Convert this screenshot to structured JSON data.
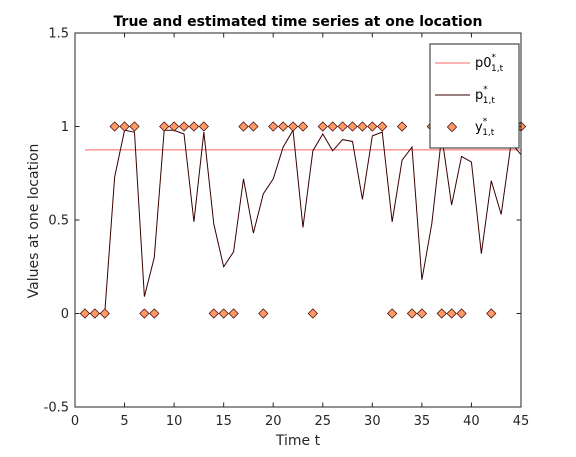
{
  "chart_data": {
    "type": "line",
    "title": "True and estimated time series at one location",
    "xlabel": "Time t",
    "ylabel": "Values at one location",
    "xlim": [
      0,
      45
    ],
    "ylim": [
      -0.5,
      1.5
    ],
    "xticks": [
      0,
      5,
      10,
      15,
      20,
      25,
      30,
      35,
      40,
      45
    ],
    "yticks": [
      -0.5,
      0,
      0.5,
      1,
      1.5
    ],
    "xtick_labels": [
      "0",
      "5",
      "10",
      "15",
      "20",
      "25",
      "30",
      "35",
      "40",
      "45"
    ],
    "ytick_labels": [
      "-0.5",
      "0",
      "0.5",
      "1",
      "1.5"
    ],
    "grid": false,
    "legend_position": "top-right",
    "series": [
      {
        "name": "p0",
        "name_sup": "*",
        "name_sub": "1,t",
        "kind": "line",
        "color": "#ff6464",
        "x": [
          1,
          45
        ],
        "y": [
          0.875,
          0.875
        ]
      },
      {
        "name": "p",
        "name_sup": "*",
        "name_sub": "1,t",
        "kind": "line",
        "color": "#3a0000",
        "x": [
          1,
          2,
          3,
          4,
          5,
          6,
          7,
          8,
          9,
          10,
          11,
          12,
          13,
          14,
          15,
          16,
          17,
          18,
          19,
          20,
          21,
          22,
          23,
          24,
          25,
          26,
          27,
          28,
          29,
          30,
          31,
          32,
          33,
          34,
          35,
          36,
          37,
          38,
          39,
          40,
          41,
          42,
          43,
          44,
          45
        ],
        "y": [
          0,
          0,
          0,
          0.73,
          0.98,
          0.97,
          0.09,
          0.3,
          0.98,
          0.98,
          0.96,
          0.49,
          0.97,
          0.48,
          0.25,
          0.33,
          0.72,
          0.43,
          0.64,
          0.72,
          0.89,
          0.98,
          0.46,
          0.87,
          0.96,
          0.87,
          0.93,
          0.92,
          0.61,
          0.95,
          0.97,
          0.49,
          0.82,
          0.89,
          0.18,
          0.48,
          0.95,
          0.58,
          0.84,
          0.81,
          0.32,
          0.71,
          0.53,
          0.91,
          0.85
        ]
      },
      {
        "name": "y",
        "name_sup": "*",
        "name_sub": "1,t",
        "kind": "scatter",
        "color": "#ff9966",
        "x": [
          1,
          2,
          3,
          4,
          5,
          6,
          7,
          8,
          9,
          10,
          11,
          12,
          13,
          14,
          15,
          16,
          17,
          18,
          19,
          20,
          21,
          22,
          23,
          24,
          25,
          26,
          27,
          28,
          29,
          30,
          31,
          32,
          33,
          34,
          35,
          36,
          37,
          38,
          39,
          40,
          41,
          42,
          43,
          44,
          45
        ],
        "y": [
          0,
          0,
          0,
          1,
          1,
          1,
          0,
          0,
          1,
          1,
          1,
          1,
          1,
          0,
          0,
          0,
          1,
          1,
          0,
          1,
          1,
          1,
          1,
          0,
          1,
          1,
          1,
          1,
          1,
          1,
          1,
          0,
          1,
          0,
          0,
          1,
          0,
          0,
          0,
          1,
          1,
          0,
          1,
          1,
          1
        ]
      }
    ]
  }
}
